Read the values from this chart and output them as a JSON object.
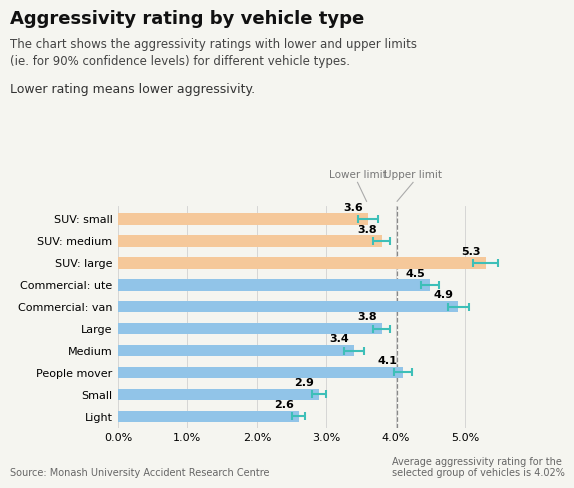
{
  "title": "Aggressivity rating by vehicle type",
  "subtitle1": "The chart shows the aggressivity ratings with lower and upper limits",
  "subtitle2": "(ie. for 90% confidence levels) for different vehicle types.",
  "subtitle3": "Lower rating means lower aggressivity.",
  "categories": [
    "SUV: small",
    "SUV: medium",
    "SUV: large",
    "Commercial: ute",
    "Commercial: van",
    "Large",
    "Medium",
    "People mover",
    "Small",
    "Light"
  ],
  "bar_values": [
    3.6,
    3.8,
    5.3,
    4.5,
    4.9,
    3.8,
    3.4,
    4.1,
    2.9,
    2.6
  ],
  "bar_colors": [
    "#f5c89a",
    "#f5c89a",
    "#f5c89a",
    "#91c4e8",
    "#91c4e8",
    "#91c4e8",
    "#91c4e8",
    "#91c4e8",
    "#91c4e8",
    "#91c4e8"
  ],
  "error_lower": [
    0.15,
    0.12,
    0.18,
    0.13,
    0.15,
    0.12,
    0.14,
    0.13,
    0.1,
    0.09
  ],
  "error_upper": [
    0.15,
    0.12,
    0.18,
    0.13,
    0.15,
    0.12,
    0.14,
    0.13,
    0.1,
    0.09
  ],
  "value_labels": [
    "3.6",
    "3.8",
    "5.3",
    "4.5",
    "4.9",
    "3.8",
    "3.4",
    "4.1",
    "2.9",
    "2.6"
  ],
  "avg_line": 4.02,
  "xlim": [
    0.0,
    5.6
  ],
  "xticks": [
    0.0,
    1.0,
    2.0,
    3.0,
    4.0,
    5.0
  ],
  "xtick_labels": [
    "0.0%",
    "1.0%",
    "2.0%",
    "3.0%",
    "4.0%",
    "5.0%"
  ],
  "lower_limit_label": "Lower limit",
  "upper_limit_label": "Upper limit",
  "source_text": "Source: Monash University Accident Research Centre",
  "avg_text": "Average aggressivity rating for the\nselected group of vehicles is 4.02%",
  "error_color": "#3dbfb8",
  "bg_color": "#f5f5f0",
  "bar_height": 0.52,
  "title_fontsize": 13,
  "subtitle_fontsize": 8.5,
  "label_fontsize": 8,
  "value_fontsize": 8
}
